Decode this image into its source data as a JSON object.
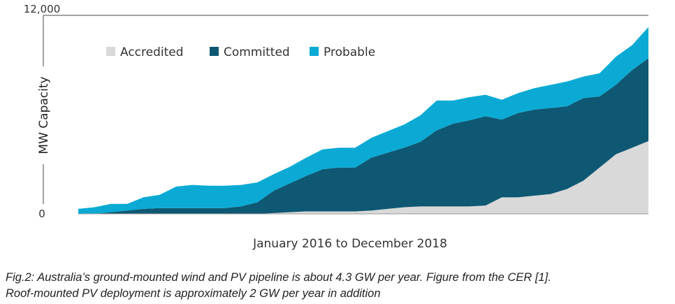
{
  "chart_data": {
    "type": "area",
    "stacked": true,
    "xlabel": "January 2016 to December 2018",
    "ylabel": "MW Capacity",
    "ylim": [
      0,
      12000
    ],
    "y_ticks": [
      "0",
      "12,000"
    ],
    "grid": false,
    "legend_position": "top-left",
    "x": [
      "2016-01",
      "2016-02",
      "2016-03",
      "2016-04",
      "2016-05",
      "2016-06",
      "2016-07",
      "2016-08",
      "2016-09",
      "2016-10",
      "2016-11",
      "2016-12",
      "2017-01",
      "2017-02",
      "2017-03",
      "2017-04",
      "2017-05",
      "2017-06",
      "2017-07",
      "2017-08",
      "2017-09",
      "2017-10",
      "2017-11",
      "2017-12",
      "2018-01",
      "2018-02",
      "2018-03",
      "2018-04",
      "2018-05",
      "2018-06",
      "2018-07",
      "2018-08",
      "2018-09",
      "2018-10",
      "2018-11",
      "2018-12"
    ],
    "series": [
      {
        "name": "Accredited",
        "color": "#d9d9d9",
        "values": [
          0,
          0,
          0,
          0,
          0,
          0,
          0,
          0,
          0,
          0,
          0,
          0,
          50,
          100,
          150,
          150,
          150,
          150,
          200,
          300,
          400,
          450,
          450,
          450,
          450,
          500,
          1000,
          1000,
          1100,
          1200,
          1500,
          2000,
          2800,
          3600,
          4000,
          4400
        ]
      },
      {
        "name": "Committed",
        "color": "#0e5873",
        "values": [
          0,
          0,
          100,
          200,
          300,
          350,
          350,
          350,
          350,
          350,
          450,
          700,
          1350,
          1750,
          2150,
          2550,
          2650,
          2650,
          3200,
          3400,
          3600,
          3900,
          4600,
          5000,
          5200,
          5400,
          4700,
          5100,
          5200,
          5200,
          5000,
          5000,
          4300,
          4200,
          4700,
          5000
        ]
      },
      {
        "name": "Probable",
        "color": "#0aaad4",
        "values": [
          300,
          400,
          500,
          400,
          700,
          800,
          1300,
          1400,
          1350,
          1350,
          1300,
          1200,
          1000,
          1000,
          1100,
          1200,
          1200,
          1200,
          1200,
          1300,
          1400,
          1600,
          1800,
          1400,
          1400,
          1300,
          1200,
          1200,
          1300,
          1400,
          1500,
          1300,
          1400,
          1700,
          1500,
          1900
        ]
      }
    ]
  },
  "caption": {
    "line1": "Fig.2: Australia’s ground-mounted wind and PV pipeline is about 4.3 GW per year. Figure from the CER [1].",
    "line2": "Roof-mounted PV deployment is approximately 2 GW per year in addition"
  }
}
